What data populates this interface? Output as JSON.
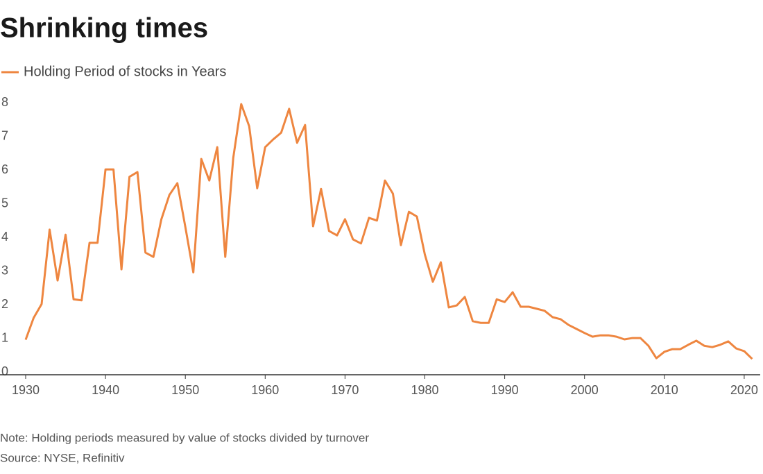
{
  "chart_data": {
    "type": "line",
    "title": "Shrinking times",
    "note": "Note: Holding periods measured by value of stocks divided by turnover",
    "source": "Source: NYSE, Refinitiv",
    "x": [
      1930,
      1931,
      1932,
      1933,
      1934,
      1935,
      1936,
      1937,
      1938,
      1939,
      1940,
      1941,
      1942,
      1943,
      1944,
      1945,
      1946,
      1947,
      1948,
      1949,
      1950,
      1951,
      1952,
      1953,
      1954,
      1955,
      1956,
      1957,
      1958,
      1959,
      1960,
      1961,
      1962,
      1963,
      1964,
      1965,
      1966,
      1967,
      1968,
      1969,
      1970,
      1971,
      1972,
      1973,
      1974,
      1975,
      1976,
      1977,
      1978,
      1979,
      1980,
      1981,
      1982,
      1983,
      1984,
      1985,
      1986,
      1987,
      1988,
      1989,
      1990,
      1991,
      1992,
      1993,
      1994,
      1995,
      1996,
      1997,
      1998,
      1999,
      2000,
      2001,
      2002,
      2003,
      2004,
      2005,
      2006,
      2007,
      2008,
      2009,
      2010,
      2011,
      2012,
      2013,
      2014,
      2015,
      2016,
      2017,
      2018,
      2019,
      2020,
      2021
    ],
    "series": [
      {
        "name": "Holding Period of stocks in Years",
        "color": "#ee8640",
        "values": [
          1.0,
          1.65,
          2.06,
          4.27,
          2.76,
          4.12,
          2.2,
          2.17,
          3.88,
          3.88,
          6.06,
          6.06,
          3.09,
          5.84,
          5.98,
          3.59,
          3.46,
          4.58,
          5.3,
          5.65,
          4.35,
          3.0,
          6.37,
          5.73,
          6.72,
          3.46,
          6.4,
          8.0,
          7.34,
          5.5,
          6.72,
          6.95,
          7.15,
          7.86,
          6.85,
          7.38,
          4.37,
          5.48,
          4.23,
          4.1,
          4.58,
          3.98,
          3.86,
          4.62,
          4.54,
          5.73,
          5.34,
          3.81,
          4.8,
          4.66,
          3.53,
          2.72,
          3.3,
          1.96,
          2.02,
          2.27,
          1.55,
          1.5,
          1.5,
          2.2,
          2.12,
          2.41,
          1.98,
          1.98,
          1.92,
          1.86,
          1.67,
          1.61,
          1.44,
          1.32,
          1.2,
          1.09,
          1.13,
          1.13,
          1.09,
          1.01,
          1.05,
          1.05,
          0.82,
          0.45,
          0.64,
          0.72,
          0.72,
          0.85,
          0.97,
          0.82,
          0.78,
          0.85,
          0.95,
          0.74,
          0.66,
          0.43
        ]
      }
    ],
    "xlim": [
      1930,
      2022
    ],
    "xticks": [
      1930,
      1940,
      1950,
      1960,
      1970,
      1980,
      1990,
      2000,
      2010,
      2020
    ],
    "ylim": [
      0,
      8
    ],
    "yticks": [
      0,
      1,
      2,
      3,
      4,
      5,
      6,
      7,
      8
    ],
    "grid": false
  }
}
